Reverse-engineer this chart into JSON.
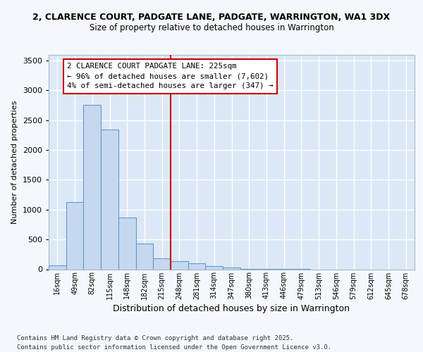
{
  "title": "2, CLARENCE COURT, PADGATE LANE, PADGATE, WARRINGTON, WA1 3DX",
  "subtitle": "Size of property relative to detached houses in Warrington",
  "xlabel": "Distribution of detached houses by size in Warrington",
  "ylabel": "Number of detached properties",
  "bar_color": "#c5d8ef",
  "bar_edge_color": "#6699cc",
  "background_color": "#dce8f5",
  "grid_color": "#ffffff",
  "vline_color": "#cc0000",
  "vline_x_idx": 6,
  "annotation_text": "2 CLARENCE COURT PADGATE LANE: 225sqm\n← 96% of detached houses are smaller (7,602)\n4% of semi-detached houses are larger (347) →",
  "categories": [
    "16sqm",
    "49sqm",
    "82sqm",
    "115sqm",
    "148sqm",
    "182sqm",
    "215sqm",
    "248sqm",
    "281sqm",
    "314sqm",
    "347sqm",
    "380sqm",
    "413sqm",
    "446sqm",
    "479sqm",
    "513sqm",
    "546sqm",
    "579sqm",
    "612sqm",
    "645sqm",
    "678sqm"
  ],
  "values": [
    60,
    1130,
    2760,
    2340,
    870,
    430,
    185,
    130,
    95,
    50,
    28,
    8,
    4,
    2,
    1,
    0,
    0,
    0,
    0,
    0,
    0
  ],
  "ylim": [
    0,
    3600
  ],
  "yticks": [
    0,
    500,
    1000,
    1500,
    2000,
    2500,
    3000,
    3500
  ],
  "footer_text": "Contains HM Land Registry data © Crown copyright and database right 2025.\nContains public sector information licensed under the Open Government Licence v3.0.",
  "fig_bg": "#f5f7fc"
}
